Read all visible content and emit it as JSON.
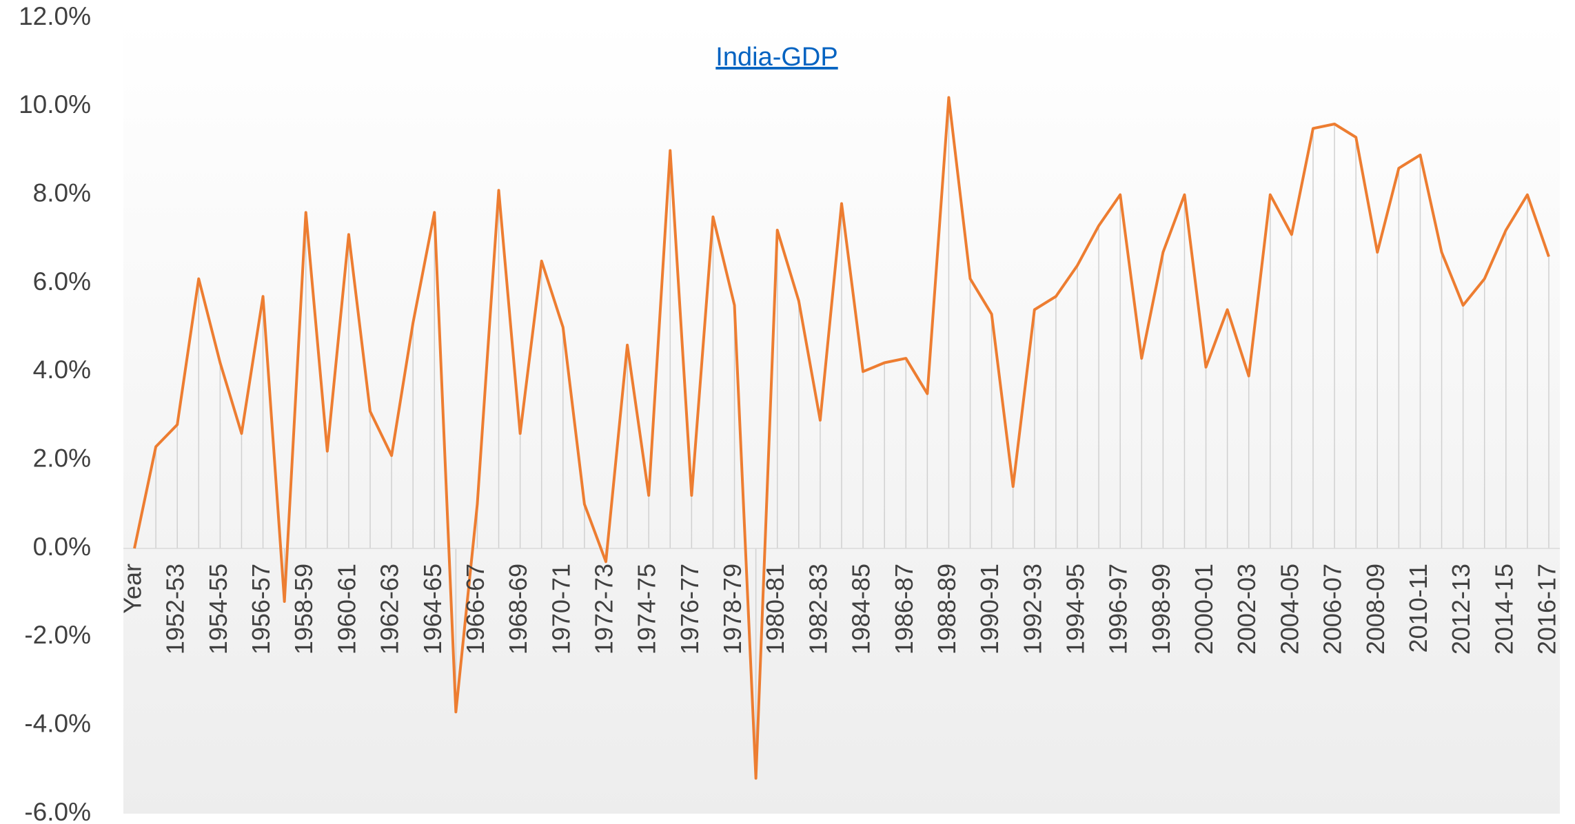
{
  "chart_data": {
    "type": "line",
    "title": "India-GDP",
    "categories": [
      "Year",
      null,
      "1952-53",
      null,
      "1954-55",
      null,
      "1956-57",
      null,
      "1958-59",
      null,
      "1960-61",
      null,
      "1962-63",
      null,
      "1964-65",
      null,
      "1966-67",
      null,
      "1968-69",
      null,
      "1970-71",
      null,
      "1972-73",
      null,
      "1974-75",
      null,
      "1976-77",
      null,
      "1978-79",
      null,
      "1980-81",
      null,
      "1982-83",
      null,
      "1984-85",
      null,
      "1986-87",
      null,
      "1988-89",
      null,
      "1990-91",
      null,
      "1992-93",
      null,
      "1994-95",
      null,
      "1996-97",
      null,
      "1998-99",
      null,
      "2000-01",
      null,
      "2002-03",
      null,
      "2004-05",
      null,
      "2006-07",
      null,
      "2008-09",
      null,
      "2010-11",
      null,
      "2012-13",
      null,
      "2014-15",
      null,
      "2016-17"
    ],
    "series": [
      {
        "name": "India-GDP",
        "color": "#ed7d31",
        "values": [
          0,
          2.3,
          2.8,
          6.1,
          4.2,
          2.6,
          5.7,
          -1.2,
          7.6,
          2.2,
          7.1,
          3.1,
          2.1,
          5.1,
          7.6,
          -3.7,
          1.0,
          8.1,
          2.6,
          6.5,
          5.0,
          1.0,
          -0.3,
          4.6,
          1.2,
          9.0,
          1.2,
          7.5,
          5.5,
          -5.2,
          7.2,
          5.6,
          2.9,
          7.8,
          4.0,
          4.2,
          4.3,
          3.5,
          10.2,
          6.1,
          5.3,
          1.4,
          5.4,
          5.7,
          6.4,
          7.3,
          8.0,
          4.3,
          6.7,
          8.0,
          4.1,
          5.4,
          3.9,
          8.0,
          7.1,
          9.5,
          9.6,
          9.3,
          6.7,
          8.6,
          8.9,
          6.7,
          5.5,
          6.1,
          7.2,
          8.0,
          6.6
        ]
      }
    ],
    "ylim": [
      -6,
      12
    ],
    "yticks": [
      {
        "value": -6,
        "label": "-6.0%"
      },
      {
        "value": -4,
        "label": "-4.0%"
      },
      {
        "value": -2,
        "label": "-2.0%"
      },
      {
        "value": 0,
        "label": "0.0%"
      },
      {
        "value": 2,
        "label": "2.0%"
      },
      {
        "value": 4,
        "label": "4.0%"
      },
      {
        "value": 6,
        "label": "6.0%"
      },
      {
        "value": 8,
        "label": "8.0%"
      },
      {
        "value": 10,
        "label": "10.0%"
      },
      {
        "value": 12,
        "label": "12.0%"
      }
    ],
    "grid": false
  }
}
